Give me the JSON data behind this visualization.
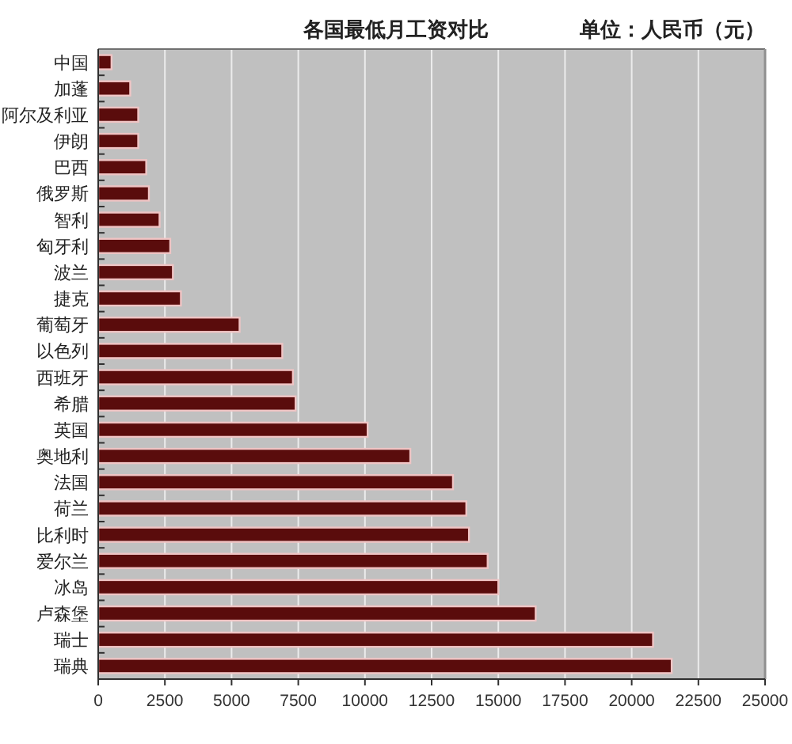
{
  "chart_data": {
    "type": "bar",
    "orientation": "horizontal",
    "title": "各国最低月工资对比",
    "annotations": [
      "单位：人民币（元）"
    ],
    "categories": [
      "中国",
      "加蓬",
      "阿尔及利亚",
      "伊朗",
      "巴西",
      "俄罗斯",
      "智利",
      "匈牙利",
      "波兰",
      "捷克",
      "葡萄牙",
      "以色列",
      "西班牙",
      "希腊",
      "英国",
      "奥地利",
      "法国",
      "荷兰",
      "比利时",
      "爱尔兰",
      "冰岛",
      "卢森堡",
      "瑞士",
      "瑞典"
    ],
    "values": [
      500,
      1200,
      1500,
      1500,
      1800,
      1900,
      2300,
      2700,
      2800,
      3100,
      5300,
      6900,
      7300,
      7400,
      10100,
      11700,
      13300,
      13800,
      13900,
      14600,
      15000,
      16400,
      20800,
      21500
    ],
    "color": "#5a0c0c",
    "xlim": [
      0,
      25000
    ],
    "xticks": [
      0,
      2500,
      5000,
      7500,
      10000,
      12500,
      15000,
      17500,
      20000,
      22500,
      25000
    ],
    "grid": "x"
  }
}
